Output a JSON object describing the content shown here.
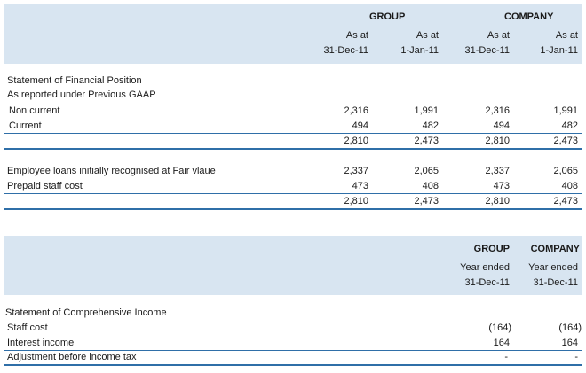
{
  "table1": {
    "header": {
      "group_label": "GROUP",
      "company_label": "COMPANY",
      "columns": [
        {
          "line1": "As at",
          "line2": "31-Dec-11"
        },
        {
          "line1": "As at",
          "line2": "1-Jan-11"
        },
        {
          "line1": "As at",
          "line2": "31-Dec-11"
        },
        {
          "line1": "As at",
          "line2": "1-Jan-11"
        }
      ]
    },
    "section_title": "Statement of Financial Position",
    "section_subtitle": "As reported under Previous GAAP",
    "rows_a": [
      {
        "label": "Non current",
        "values": [
          "2,316",
          "1,991",
          "2,316",
          "1,991"
        ]
      },
      {
        "label": "Current",
        "values": [
          "494",
          "482",
          "494",
          "482"
        ]
      }
    ],
    "total_a": [
      "2,810",
      "2,473",
      "2,810",
      "2,473"
    ],
    "rows_b": [
      {
        "label": "Employee loans initially recognised at Fair vlaue",
        "values": [
          "2,337",
          "2,065",
          "2,337",
          "2,065"
        ]
      },
      {
        "label": "Prepaid staff cost",
        "values": [
          "473",
          "408",
          "473",
          "408"
        ]
      }
    ],
    "total_b": [
      "2,810",
      "2,473",
      "2,810",
      "2,473"
    ]
  },
  "table2": {
    "header": {
      "group_label": "GROUP",
      "company_label": "COMPANY",
      "columns": [
        {
          "line1": "Year ended",
          "line2": "31-Dec-11"
        },
        {
          "line1": "Year ended",
          "line2": "31-Dec-11"
        }
      ]
    },
    "section_title": "Statement of Comprehensive Income",
    "rows": [
      {
        "label": "Staff cost",
        "values": [
          "(164)",
          "(164)"
        ]
      },
      {
        "label": "Interest income",
        "values": [
          "164",
          "164"
        ]
      },
      {
        "label": "Adjustment before income tax",
        "values": [
          "-",
          "-"
        ]
      }
    ]
  }
}
